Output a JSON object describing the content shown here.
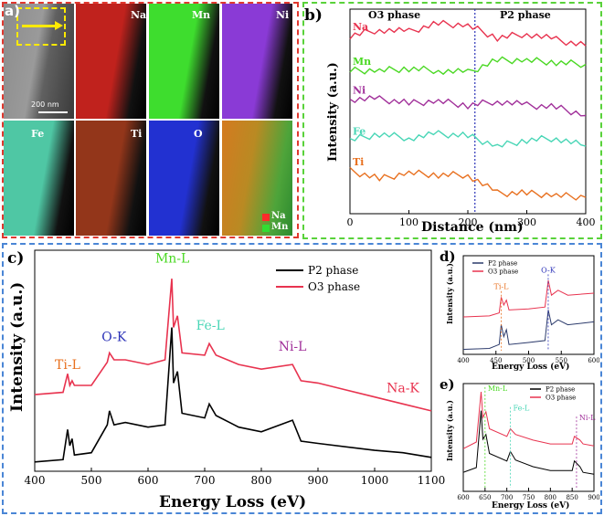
{
  "panels": {
    "a": {
      "label": "a)",
      "scale_bar": "200 nm",
      "element_maps": [
        {
          "name": "Na",
          "color": "#c0221d"
        },
        {
          "name": "Mn",
          "color": "#3edd2e"
        },
        {
          "name": "Ni",
          "color": "#8a3ad6"
        },
        {
          "name": "Fe",
          "color": "#4fc7a4"
        },
        {
          "name": "Ti",
          "color": "#93361a"
        },
        {
          "name": "O",
          "color": "#2231d1"
        }
      ],
      "overlay_legend": [
        {
          "name": "Na",
          "color": "#ff2a2a"
        },
        {
          "name": "Mn",
          "color": "#32dd32"
        }
      ]
    },
    "b": {
      "label": "b)",
      "phase_left": "O3 phase",
      "phase_right": "P2 phase",
      "ylabel": "Intensity (a.u.)",
      "xlabel": "Distance (nm)",
      "xticks": [
        "0",
        "100",
        "200",
        "300",
        "400"
      ],
      "series": [
        {
          "name": "Na",
          "color": "#e8334f"
        },
        {
          "name": "Mn",
          "color": "#4ad823"
        },
        {
          "name": "Ni",
          "color": "#a1309a"
        },
        {
          "name": "Fe",
          "color": "#49d6b6"
        },
        {
          "name": "Ti",
          "color": "#e8701f"
        }
      ]
    },
    "c": {
      "label": "c)",
      "ylabel": "Intensity (a.u.)",
      "xlabel": "Energy Loss (eV)",
      "xticks": [
        "400",
        "500",
        "600",
        "700",
        "800",
        "900",
        "1000",
        "1100"
      ],
      "legend": [
        {
          "name": "P2 phase",
          "color": "#000000"
        },
        {
          "name": "O3 phase",
          "color": "#e8334f"
        }
      ],
      "edges": [
        {
          "name": "Ti-L",
          "color": "#e8701f"
        },
        {
          "name": "O-K",
          "color": "#2c33b8"
        },
        {
          "name": "Mn-L",
          "color": "#4ad823"
        },
        {
          "name": "Fe-L",
          "color": "#49d6b6"
        },
        {
          "name": "Ni-L",
          "color": "#a1309a"
        },
        {
          "name": "Na-K",
          "color": "#e8334f"
        }
      ]
    },
    "d": {
      "label": "d)",
      "ylabel": "Intensity (a.u.)",
      "xlabel": "Energy Loss (eV)",
      "xticks": [
        "400",
        "450",
        "500",
        "550",
        "600"
      ],
      "legend": [
        {
          "name": "P2 phase",
          "color": "#2b3a6b"
        },
        {
          "name": "O3 phase",
          "color": "#e8334f"
        }
      ],
      "edges": [
        {
          "name": "Ti-L",
          "color": "#e8701f"
        },
        {
          "name": "O-K",
          "color": "#2c33b8"
        }
      ]
    },
    "e": {
      "label": "e)",
      "ylabel": "Intensity (a.u.)",
      "xlabel": "Energy Loss (eV)",
      "xticks": [
        "600",
        "650",
        "700",
        "750",
        "800",
        "850",
        "900"
      ],
      "legend": [
        {
          "name": "P2 phase",
          "color": "#000000"
        },
        {
          "name": "O3 phase",
          "color": "#e8334f"
        }
      ],
      "edges": [
        {
          "name": "Mn-L",
          "color": "#4ad823"
        },
        {
          "name": "Fe-L",
          "color": "#49d6b6"
        },
        {
          "name": "Ni-L",
          "color": "#a1309a"
        }
      ]
    }
  },
  "chart_data": [
    {
      "type": "line",
      "title": "",
      "xlabel": "Distance (nm)",
      "ylabel": "Intensity (a.u.)",
      "xlim": [
        0,
        400
      ],
      "annotations": [
        "O3 phase",
        "P2 phase"
      ],
      "series": [
        {
          "name": "Na",
          "x": [
            0,
            50,
            100,
            150,
            200,
            250,
            300,
            350,
            400
          ],
          "y": [
            0.87,
            0.9,
            0.89,
            0.93,
            0.92,
            0.86,
            0.88,
            0.85,
            0.82
          ]
        },
        {
          "name": "Mn",
          "x": [
            0,
            50,
            100,
            150,
            200,
            250,
            300,
            350,
            400
          ],
          "y": [
            0.7,
            0.7,
            0.71,
            0.7,
            0.69,
            0.75,
            0.75,
            0.74,
            0.73
          ]
        },
        {
          "name": "Ni",
          "x": [
            0,
            50,
            100,
            150,
            200,
            250,
            300,
            350,
            400
          ],
          "y": [
            0.56,
            0.56,
            0.54,
            0.55,
            0.53,
            0.55,
            0.53,
            0.52,
            0.48
          ]
        },
        {
          "name": "Fe",
          "x": [
            0,
            50,
            100,
            150,
            200,
            250,
            300,
            350,
            400
          ],
          "y": [
            0.36,
            0.39,
            0.37,
            0.39,
            0.38,
            0.33,
            0.36,
            0.37,
            0.33
          ]
        },
        {
          "name": "Ti",
          "x": [
            0,
            50,
            100,
            150,
            200,
            250,
            300,
            350,
            400
          ],
          "y": [
            0.21,
            0.17,
            0.2,
            0.19,
            0.19,
            0.1,
            0.1,
            0.09,
            0.08
          ]
        }
      ]
    },
    {
      "type": "line",
      "title": "",
      "xlabel": "Energy Loss (eV)",
      "ylabel": "Intensity (a.u.)",
      "xlim": [
        400,
        1100
      ],
      "series": [
        {
          "name": "P2 phase",
          "x": [
            400,
            450,
            458,
            462,
            466,
            470,
            500,
            528,
            532,
            540,
            560,
            600,
            630,
            642,
            645,
            652,
            660,
            700,
            708,
            720,
            760,
            800,
            855,
            870,
            900,
            1000,
            1050,
            1100
          ],
          "y": [
            0.04,
            0.05,
            0.18,
            0.11,
            0.14,
            0.07,
            0.08,
            0.2,
            0.26,
            0.2,
            0.21,
            0.19,
            0.2,
            0.62,
            0.38,
            0.43,
            0.25,
            0.23,
            0.29,
            0.24,
            0.19,
            0.17,
            0.22,
            0.13,
            0.12,
            0.09,
            0.08,
            0.06
          ]
        },
        {
          "name": "O3 phase",
          "x": [
            400,
            450,
            458,
            462,
            466,
            470,
            500,
            528,
            532,
            540,
            560,
            600,
            630,
            642,
            645,
            652,
            660,
            700,
            708,
            720,
            760,
            800,
            855,
            870,
            900,
            1000,
            1050,
            1100
          ],
          "y": [
            0.33,
            0.34,
            0.42,
            0.37,
            0.39,
            0.37,
            0.37,
            0.47,
            0.51,
            0.48,
            0.48,
            0.46,
            0.48,
            0.83,
            0.62,
            0.67,
            0.51,
            0.5,
            0.55,
            0.5,
            0.46,
            0.44,
            0.46,
            0.39,
            0.38,
            0.32,
            0.29,
            0.26
          ]
        }
      ]
    },
    {
      "type": "line",
      "title": "",
      "xlabel": "Energy Loss (eV)",
      "ylabel": "Intensity (a.u.)",
      "xlim": [
        400,
        600
      ],
      "series": [
        {
          "name": "P2 phase",
          "x": [
            400,
            440,
            455,
            458,
            462,
            466,
            470,
            500,
            525,
            530,
            535,
            545,
            560,
            600
          ],
          "y": [
            0.05,
            0.06,
            0.1,
            0.3,
            0.18,
            0.25,
            0.1,
            0.12,
            0.14,
            0.45,
            0.3,
            0.35,
            0.3,
            0.33
          ]
        },
        {
          "name": "O3 phase",
          "x": [
            400,
            440,
            455,
            458,
            462,
            466,
            470,
            500,
            525,
            530,
            535,
            545,
            560,
            600
          ],
          "y": [
            0.38,
            0.39,
            0.42,
            0.58,
            0.5,
            0.55,
            0.45,
            0.46,
            0.48,
            0.75,
            0.6,
            0.65,
            0.6,
            0.62
          ]
        }
      ]
    },
    {
      "type": "line",
      "title": "",
      "xlabel": "Energy Loss (eV)",
      "ylabel": "Intensity (a.u.)",
      "xlim": [
        600,
        900
      ],
      "series": [
        {
          "name": "P2 phase",
          "x": [
            600,
            630,
            641,
            645,
            652,
            660,
            700,
            708,
            720,
            760,
            800,
            850,
            855,
            868,
            875,
            900
          ],
          "y": [
            0.2,
            0.25,
            0.85,
            0.55,
            0.6,
            0.4,
            0.32,
            0.42,
            0.33,
            0.26,
            0.22,
            0.22,
            0.32,
            0.26,
            0.2,
            0.18
          ]
        },
        {
          "name": "O3 phase",
          "x": [
            600,
            630,
            641,
            645,
            652,
            660,
            700,
            708,
            720,
            760,
            800,
            850,
            855,
            868,
            875,
            900
          ],
          "y": [
            0.45,
            0.52,
            1.05,
            0.78,
            0.84,
            0.66,
            0.58,
            0.66,
            0.6,
            0.54,
            0.5,
            0.5,
            0.58,
            0.54,
            0.5,
            0.48
          ]
        }
      ]
    }
  ]
}
